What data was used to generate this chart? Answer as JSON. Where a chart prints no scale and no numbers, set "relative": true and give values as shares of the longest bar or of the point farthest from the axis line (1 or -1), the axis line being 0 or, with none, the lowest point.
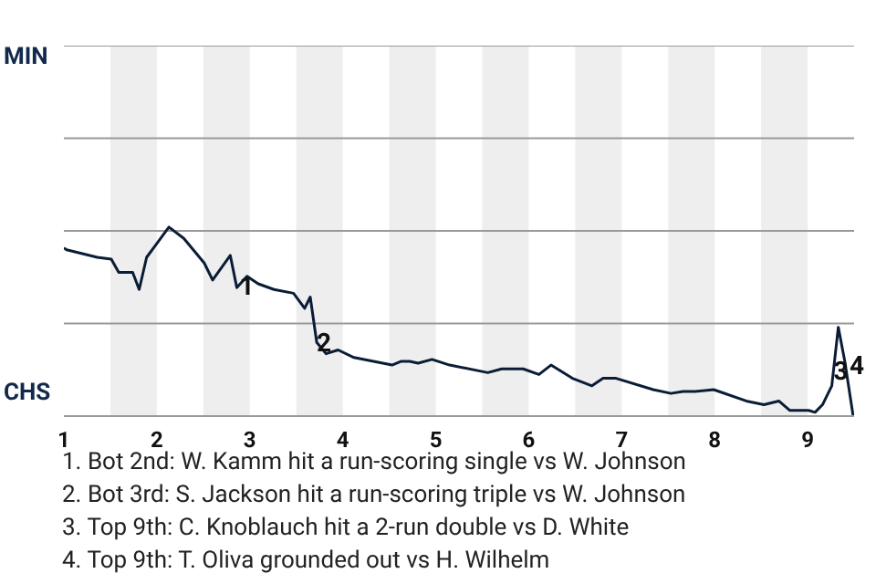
{
  "chart_data": {
    "type": "line",
    "relative": true,
    "xlim": [
      1,
      9.5
    ],
    "xticks": [
      1,
      2,
      3,
      4,
      5,
      6,
      7,
      8,
      9
    ],
    "marker": "none",
    "ref_lines": [
      {
        "axis": "y",
        "value": 0.49,
        "color": "#999999"
      },
      {
        "axis": "y",
        "value": 0.98,
        "color": "#999999"
      },
      {
        "axis": "y",
        "value": 1.47,
        "color": "#999999"
      },
      {
        "axis": "y",
        "value": 1.96,
        "color": "#999999"
      }
    ],
    "series": [
      {
        "color": "#0b1d36",
        "x": [
          1.0,
          1.03,
          1.36,
          1.51,
          1.59,
          1.74,
          1.81,
          1.89,
          1.98,
          2.13,
          2.29,
          2.51,
          2.6,
          2.79,
          2.86,
          2.97,
          3.09,
          3.26,
          3.47,
          3.59,
          3.65,
          3.72,
          3.82,
          3.95,
          4.12,
          4.53,
          4.63,
          4.72,
          4.81,
          4.96,
          5.15,
          5.56,
          5.71,
          5.94,
          6.11,
          6.24,
          6.47,
          6.68,
          6.8,
          6.94,
          7.34,
          7.53,
          7.66,
          7.79,
          7.99,
          8.34,
          8.53,
          8.69,
          8.81,
          9.01,
          9.08,
          9.16,
          9.26,
          9.33,
          9.4,
          9.49
        ],
        "values": [
          0.89,
          0.88,
          0.84,
          0.83,
          0.76,
          0.76,
          0.67,
          0.84,
          0.9,
          1,
          0.94,
          0.81,
          0.72,
          0.85,
          0.68,
          0.74,
          0.7,
          0.67,
          0.65,
          0.57,
          0.63,
          0.39,
          0.33,
          0.35,
          0.31,
          0.27,
          0.29,
          0.29,
          0.28,
          0.3,
          0.27,
          0.23,
          0.25,
          0.25,
          0.22,
          0.27,
          0.2,
          0.16,
          0.2,
          0.2,
          0.14,
          0.12,
          0.13,
          0.13,
          0.14,
          0.08,
          0.06,
          0.08,
          0.03,
          0.03,
          0.02,
          0.06,
          0.16,
          0.47,
          0.29,
          0
        ]
      }
    ],
    "bands": [
      {
        "axis": "x",
        "from": 1.5,
        "to": 2,
        "color": "#eeeeee"
      },
      {
        "axis": "x",
        "from": 2.5,
        "to": 3,
        "color": "#eeeeee"
      },
      {
        "axis": "x",
        "from": 3.5,
        "to": 4,
        "color": "#eeeeee"
      },
      {
        "axis": "x",
        "from": 4.5,
        "to": 5,
        "color": "#eeeeee"
      },
      {
        "axis": "x",
        "from": 5.5,
        "to": 6,
        "color": "#eeeeee"
      },
      {
        "axis": "x",
        "from": 6.5,
        "to": 7,
        "color": "#eeeeee"
      },
      {
        "axis": "x",
        "from": 7.5,
        "to": 8,
        "color": "#eeeeee"
      },
      {
        "axis": "x",
        "from": 8.5,
        "to": 9,
        "color": "#eeeeee"
      }
    ],
    "annotations": [
      "MIN",
      "CHS",
      {
        "text": "1",
        "x": 2.91,
        "y": 0.69
      },
      {
        "text": "2",
        "x": 3.74,
        "y": 0.39
      },
      {
        "text": "3",
        "x": 9.3,
        "y": 0.24
      },
      {
        "text": "4",
        "x": 9.47,
        "y": 0.27
      },
      "1. Bot 2nd: W. Kamm hit a run-scoring single vs W. Johnson",
      "2. Bot 3rd: S. Jackson hit a run-scoring triple vs W. Johnson",
      "3. Top 9th: C. Knoblauch hit a 2-run double vs D. White",
      "4. Top 9th: T. Oliva grounded out vs H. Wilhelm"
    ]
  }
}
